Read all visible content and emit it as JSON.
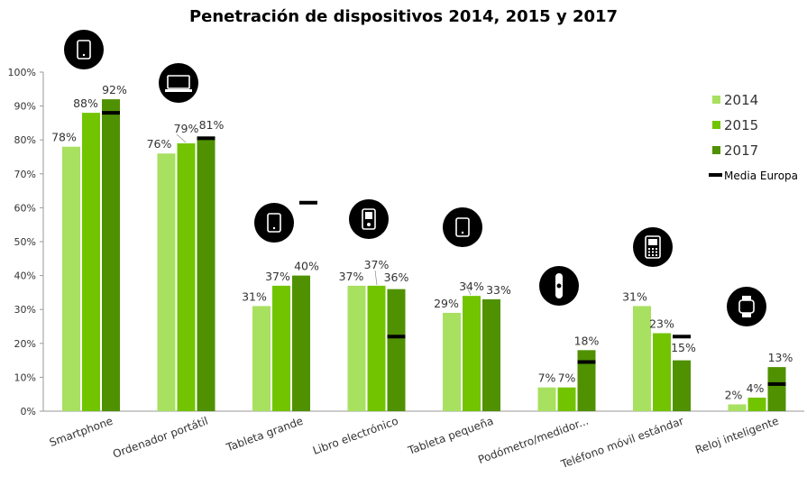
{
  "chart_data": {
    "type": "bar",
    "title": "Penetración de dispositivos 2014, 2015 y 2017",
    "categories": [
      "Smartphone",
      "Ordenador portátil",
      "Tableta grande",
      "Libro electrónico",
      "Tableta pequeña",
      "Podómetro/medidor...",
      "Teléfono móvil estándar",
      "Reloj inteligente"
    ],
    "series": [
      {
        "name": "2014",
        "color": "#a8e060",
        "values": [
          78,
          76,
          31,
          37,
          29,
          7,
          31,
          2
        ],
        "labels": [
          "78%",
          "76%",
          "31%",
          "37%",
          "29%",
          "7%",
          "31%",
          "2%"
        ]
      },
      {
        "name": "2015",
        "color": "#72c400",
        "values": [
          88,
          79,
          37,
          37,
          34,
          7,
          23,
          4
        ],
        "labels": [
          "88%",
          "79%",
          "37%",
          "37%",
          "34%",
          "7%",
          "23%",
          "4%"
        ]
      },
      {
        "name": "2017",
        "color": "#4f9100",
        "values": [
          92,
          81,
          40,
          36,
          33,
          18,
          15,
          13
        ],
        "labels": [
          "92%",
          "81%",
          "40%",
          "36%",
          "33%",
          "18%",
          "15%",
          "13%"
        ]
      }
    ],
    "europe_average": {
      "name": "Media Europa",
      "values": [
        88,
        80.5,
        61.5,
        22,
        null,
        14.5,
        22,
        8
      ]
    },
    "ylim": [
      0,
      100
    ],
    "yticks": [
      "0%",
      "10%",
      "20%",
      "30%",
      "40%",
      "50%",
      "60%",
      "70%",
      "80%",
      "90%",
      "100%"
    ],
    "grid": false,
    "legend_position": "right",
    "icons": [
      "smartphone-icon",
      "laptop-icon",
      "tablet-icon",
      "ereader-icon",
      "small-tablet-icon",
      "pedometer-icon",
      "feature-phone-icon",
      "smartwatch-icon"
    ]
  }
}
